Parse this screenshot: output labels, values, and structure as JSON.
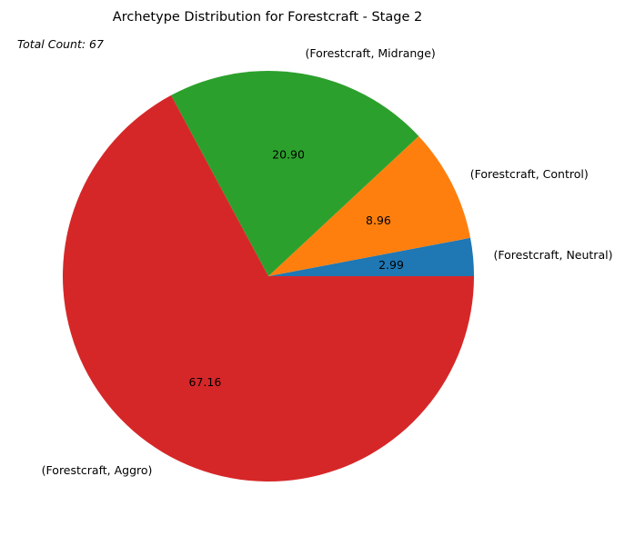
{
  "chart_data": {
    "type": "pie",
    "title": "Archetype Distribution for Forestcraft - Stage 2",
    "annotation": "Total Count: 67",
    "slices": [
      {
        "label": "(Forestcraft, Neutral)",
        "value": 2.99,
        "display": "2.99",
        "color": "#1f77b4"
      },
      {
        "label": "(Forestcraft, Control)",
        "value": 8.96,
        "display": "8.96",
        "color": "#ff7f0e"
      },
      {
        "label": "(Forestcraft, Midrange)",
        "value": 20.9,
        "display": "20.90",
        "color": "#2ca02c"
      },
      {
        "label": "(Forestcraft, Aggro)",
        "value": 67.16,
        "display": "67.16",
        "color": "#d62728"
      }
    ],
    "start_angle_deg": 0,
    "direction": "counterclockwise",
    "legend": "none"
  }
}
